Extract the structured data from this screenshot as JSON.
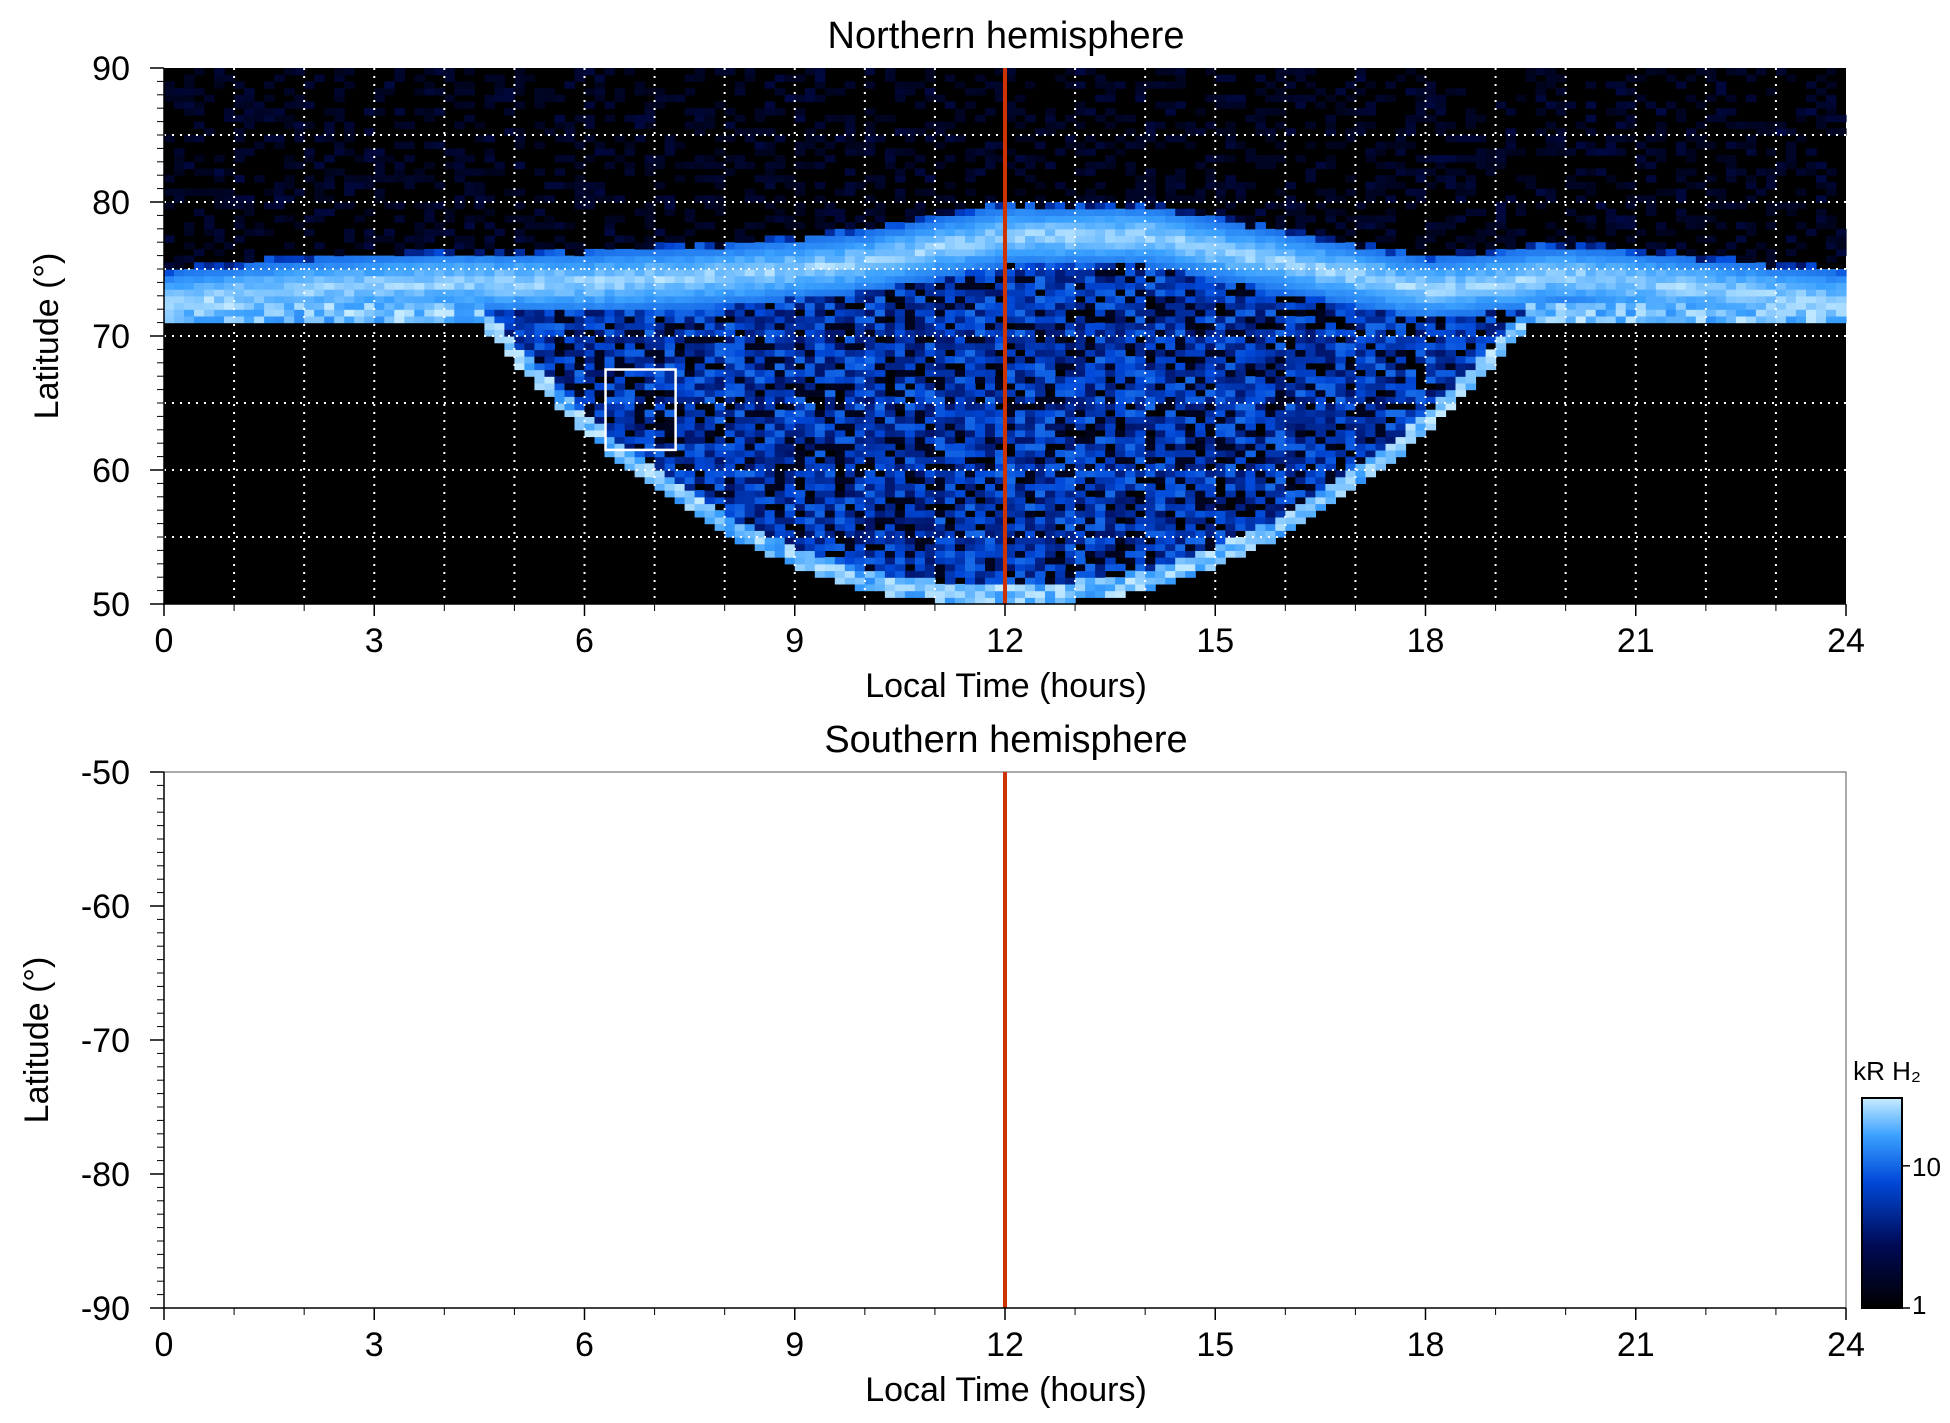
{
  "chart_data": [
    {
      "type": "heatmap",
      "title": "Northern hemisphere",
      "xlabel": "Local Time (hours)",
      "ylabel": "Latitude (°)",
      "xlim": [
        0,
        24
      ],
      "ylim": [
        50,
        90
      ],
      "xticks": [
        "0",
        "3",
        "6",
        "9",
        "12",
        "15",
        "18",
        "21",
        "24"
      ],
      "yticks": [
        "50",
        "60",
        "70",
        "80",
        "90"
      ],
      "grid": true,
      "grid_style": "white dotted",
      "marker_line_x": 12,
      "marker_line_color": "#cc3300",
      "highlight_box": {
        "x": [
          6.3,
          7.3
        ],
        "y": [
          61.5,
          67.5
        ]
      },
      "auroral_oval_latitude": [
        {
          "lt": 0,
          "lat": 72.5
        },
        {
          "lt": 2,
          "lat": 73.5
        },
        {
          "lt": 4,
          "lat": 74
        },
        {
          "lt": 6,
          "lat": 74
        },
        {
          "lt": 8,
          "lat": 74.5
        },
        {
          "lt": 10,
          "lat": 75.5
        },
        {
          "lt": 12,
          "lat": 77.5
        },
        {
          "lt": 14,
          "lat": 77.5
        },
        {
          "lt": 16,
          "lat": 75.5
        },
        {
          "lt": 18,
          "lat": 73.5
        },
        {
          "lt": 20,
          "lat": 74.5
        },
        {
          "lt": 22,
          "lat": 73.5
        },
        {
          "lt": 24,
          "lat": 72.5
        }
      ]
    },
    {
      "type": "heatmap",
      "title": "Southern hemisphere",
      "xlabel": "Local Time (hours)",
      "ylabel": "Latitude (°)",
      "xlim": [
        0,
        24
      ],
      "ylim": [
        -90,
        -50
      ],
      "xticks": [
        "0",
        "3",
        "6",
        "9",
        "12",
        "15",
        "18",
        "21",
        "24"
      ],
      "yticks": [
        "-90",
        "-80",
        "-70",
        "-60",
        "-50"
      ],
      "grid": false,
      "empty": true,
      "marker_line_x": 12,
      "marker_line_color": "#cc3300"
    }
  ],
  "colorbar": {
    "label": "kR H₂",
    "scale": "log",
    "range": [
      1,
      30
    ],
    "ticks": [
      "1",
      "10"
    ],
    "colors": [
      "#000000",
      "#000a55",
      "#0048d8",
      "#3aa0ff",
      "#c8ecff"
    ]
  }
}
